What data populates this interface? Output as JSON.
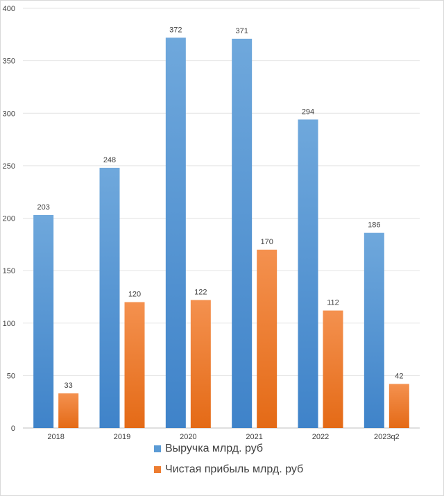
{
  "chart_data": {
    "type": "bar",
    "categories": [
      "2018",
      "2019",
      "2020",
      "2021",
      "2022",
      "2023q2"
    ],
    "series": [
      {
        "name": "Выручка млрд. руб",
        "values": [
          203,
          248,
          372,
          371,
          294,
          186
        ],
        "color": "#5b9bd5"
      },
      {
        "name": "Чистая прибыль млрд. руб",
        "values": [
          33,
          120,
          122,
          170,
          112,
          42
        ],
        "color": "#ed7d31"
      }
    ],
    "ylim": [
      0,
      400
    ],
    "yticks": [
      0,
      50,
      100,
      150,
      200,
      250,
      300,
      350,
      400
    ],
    "grid": true,
    "legend_position": "bottom",
    "title": "",
    "xlabel": "",
    "ylabel": ""
  }
}
